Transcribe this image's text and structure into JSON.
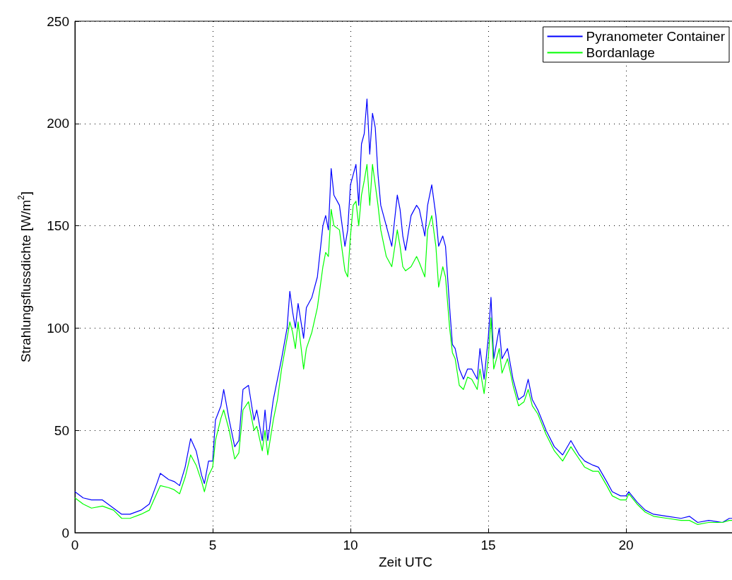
{
  "chart_data": {
    "type": "line",
    "xlabel": "Zeit UTC",
    "ylabel": "Strahlungsflussdichte [W/m$^{2}$]",
    "x": [
      0,
      0.3,
      0.6,
      1.0,
      1.4,
      1.7,
      2.0,
      2.4,
      2.7,
      3.0,
      3.1,
      3.4,
      3.6,
      3.8,
      4.0,
      4.2,
      4.4,
      4.6,
      4.7,
      4.85,
      5.0,
      5.1,
      5.3,
      5.4,
      5.6,
      5.8,
      5.95,
      6.1,
      6.3,
      6.5,
      6.6,
      6.8,
      6.9,
      7.0,
      7.2,
      7.35,
      7.5,
      7.7,
      7.8,
      7.9,
      8.0,
      8.1,
      8.3,
      8.4,
      8.6,
      8.8,
      9.0,
      9.1,
      9.2,
      9.3,
      9.4,
      9.6,
      9.8,
      9.9,
      10.0,
      10.1,
      10.2,
      10.3,
      10.4,
      10.5,
      10.6,
      10.7,
      10.8,
      10.9,
      11.0,
      11.1,
      11.3,
      11.5,
      11.7,
      11.8,
      11.9,
      12.0,
      12.2,
      12.4,
      12.5,
      12.7,
      12.8,
      12.95,
      13.1,
      13.2,
      13.35,
      13.45,
      13.6,
      13.7,
      13.8,
      13.95,
      14.1,
      14.25,
      14.4,
      14.6,
      14.7,
      14.85,
      15.0,
      15.1,
      15.2,
      15.4,
      15.5,
      15.7,
      15.9,
      16.1,
      16.3,
      16.45,
      16.6,
      16.8,
      17.1,
      17.4,
      17.7,
      18.0,
      18.3,
      18.5,
      18.8,
      19.0,
      19.3,
      19.5,
      19.8,
      20.0,
      20.1,
      20.4,
      20.7,
      21.0,
      21.5,
      22.0,
      22.3,
      22.6,
      23.0,
      23.5,
      23.75,
      24.0
    ],
    "series": [
      {
        "name": "Pyranometer Container",
        "color": "#0000ff",
        "values": [
          20,
          17,
          16,
          16,
          12,
          9,
          9,
          11,
          14,
          25,
          29,
          26,
          25,
          23,
          32,
          46,
          40,
          28,
          24,
          35,
          35,
          55,
          62,
          70,
          55,
          42,
          45,
          70,
          72,
          55,
          60,
          45,
          60,
          45,
          65,
          75,
          85,
          100,
          118,
          108,
          100,
          112,
          95,
          110,
          115,
          125,
          150,
          155,
          148,
          178,
          165,
          160,
          140,
          148,
          170,
          175,
          180,
          160,
          190,
          195,
          212,
          185,
          205,
          198,
          175,
          160,
          150,
          140,
          165,
          158,
          145,
          138,
          155,
          160,
          158,
          145,
          160,
          170,
          155,
          140,
          145,
          140,
          110,
          92,
          90,
          80,
          75,
          80,
          80,
          75,
          90,
          75,
          95,
          115,
          85,
          100,
          85,
          90,
          75,
          65,
          67,
          75,
          65,
          60,
          50,
          42,
          38,
          45,
          38,
          35,
          33,
          32,
          25,
          20,
          18,
          18,
          20,
          15,
          11,
          9,
          8,
          7,
          8,
          5,
          6,
          5,
          7,
          7
        ]
      },
      {
        "name": "Bordanlage",
        "color": "#00ff00",
        "values": [
          17,
          14,
          12,
          13,
          11,
          7,
          7,
          9,
          11,
          20,
          23,
          22,
          21,
          19,
          27,
          38,
          33,
          25,
          20,
          28,
          32,
          45,
          56,
          60,
          50,
          36,
          39,
          60,
          64,
          50,
          52,
          40,
          50,
          38,
          55,
          65,
          80,
          95,
          103,
          98,
          90,
          103,
          80,
          90,
          98,
          110,
          130,
          137,
          135,
          158,
          150,
          148,
          128,
          125,
          145,
          160,
          162,
          150,
          165,
          172,
          180,
          160,
          180,
          170,
          160,
          148,
          135,
          130,
          148,
          140,
          130,
          128,
          130,
          135,
          132,
          125,
          148,
          155,
          140,
          120,
          130,
          125,
          100,
          88,
          85,
          72,
          70,
          76,
          75,
          70,
          80,
          68,
          85,
          105,
          80,
          90,
          78,
          85,
          72,
          62,
          64,
          70,
          62,
          58,
          48,
          40,
          35,
          42,
          36,
          32,
          30,
          30,
          23,
          18,
          16,
          16,
          19,
          14,
          10,
          8,
          7,
          6,
          6,
          4,
          5,
          5,
          6,
          6
        ]
      }
    ],
    "xlim": [
      0,
      24
    ],
    "xticks": [
      0,
      5,
      10,
      15,
      20
    ],
    "ylim": [
      0,
      250
    ],
    "yticks": [
      0,
      50,
      100,
      150,
      200,
      250
    ],
    "grid": true,
    "legend": "top right",
    "line_style": "solid",
    "marker": "none"
  }
}
